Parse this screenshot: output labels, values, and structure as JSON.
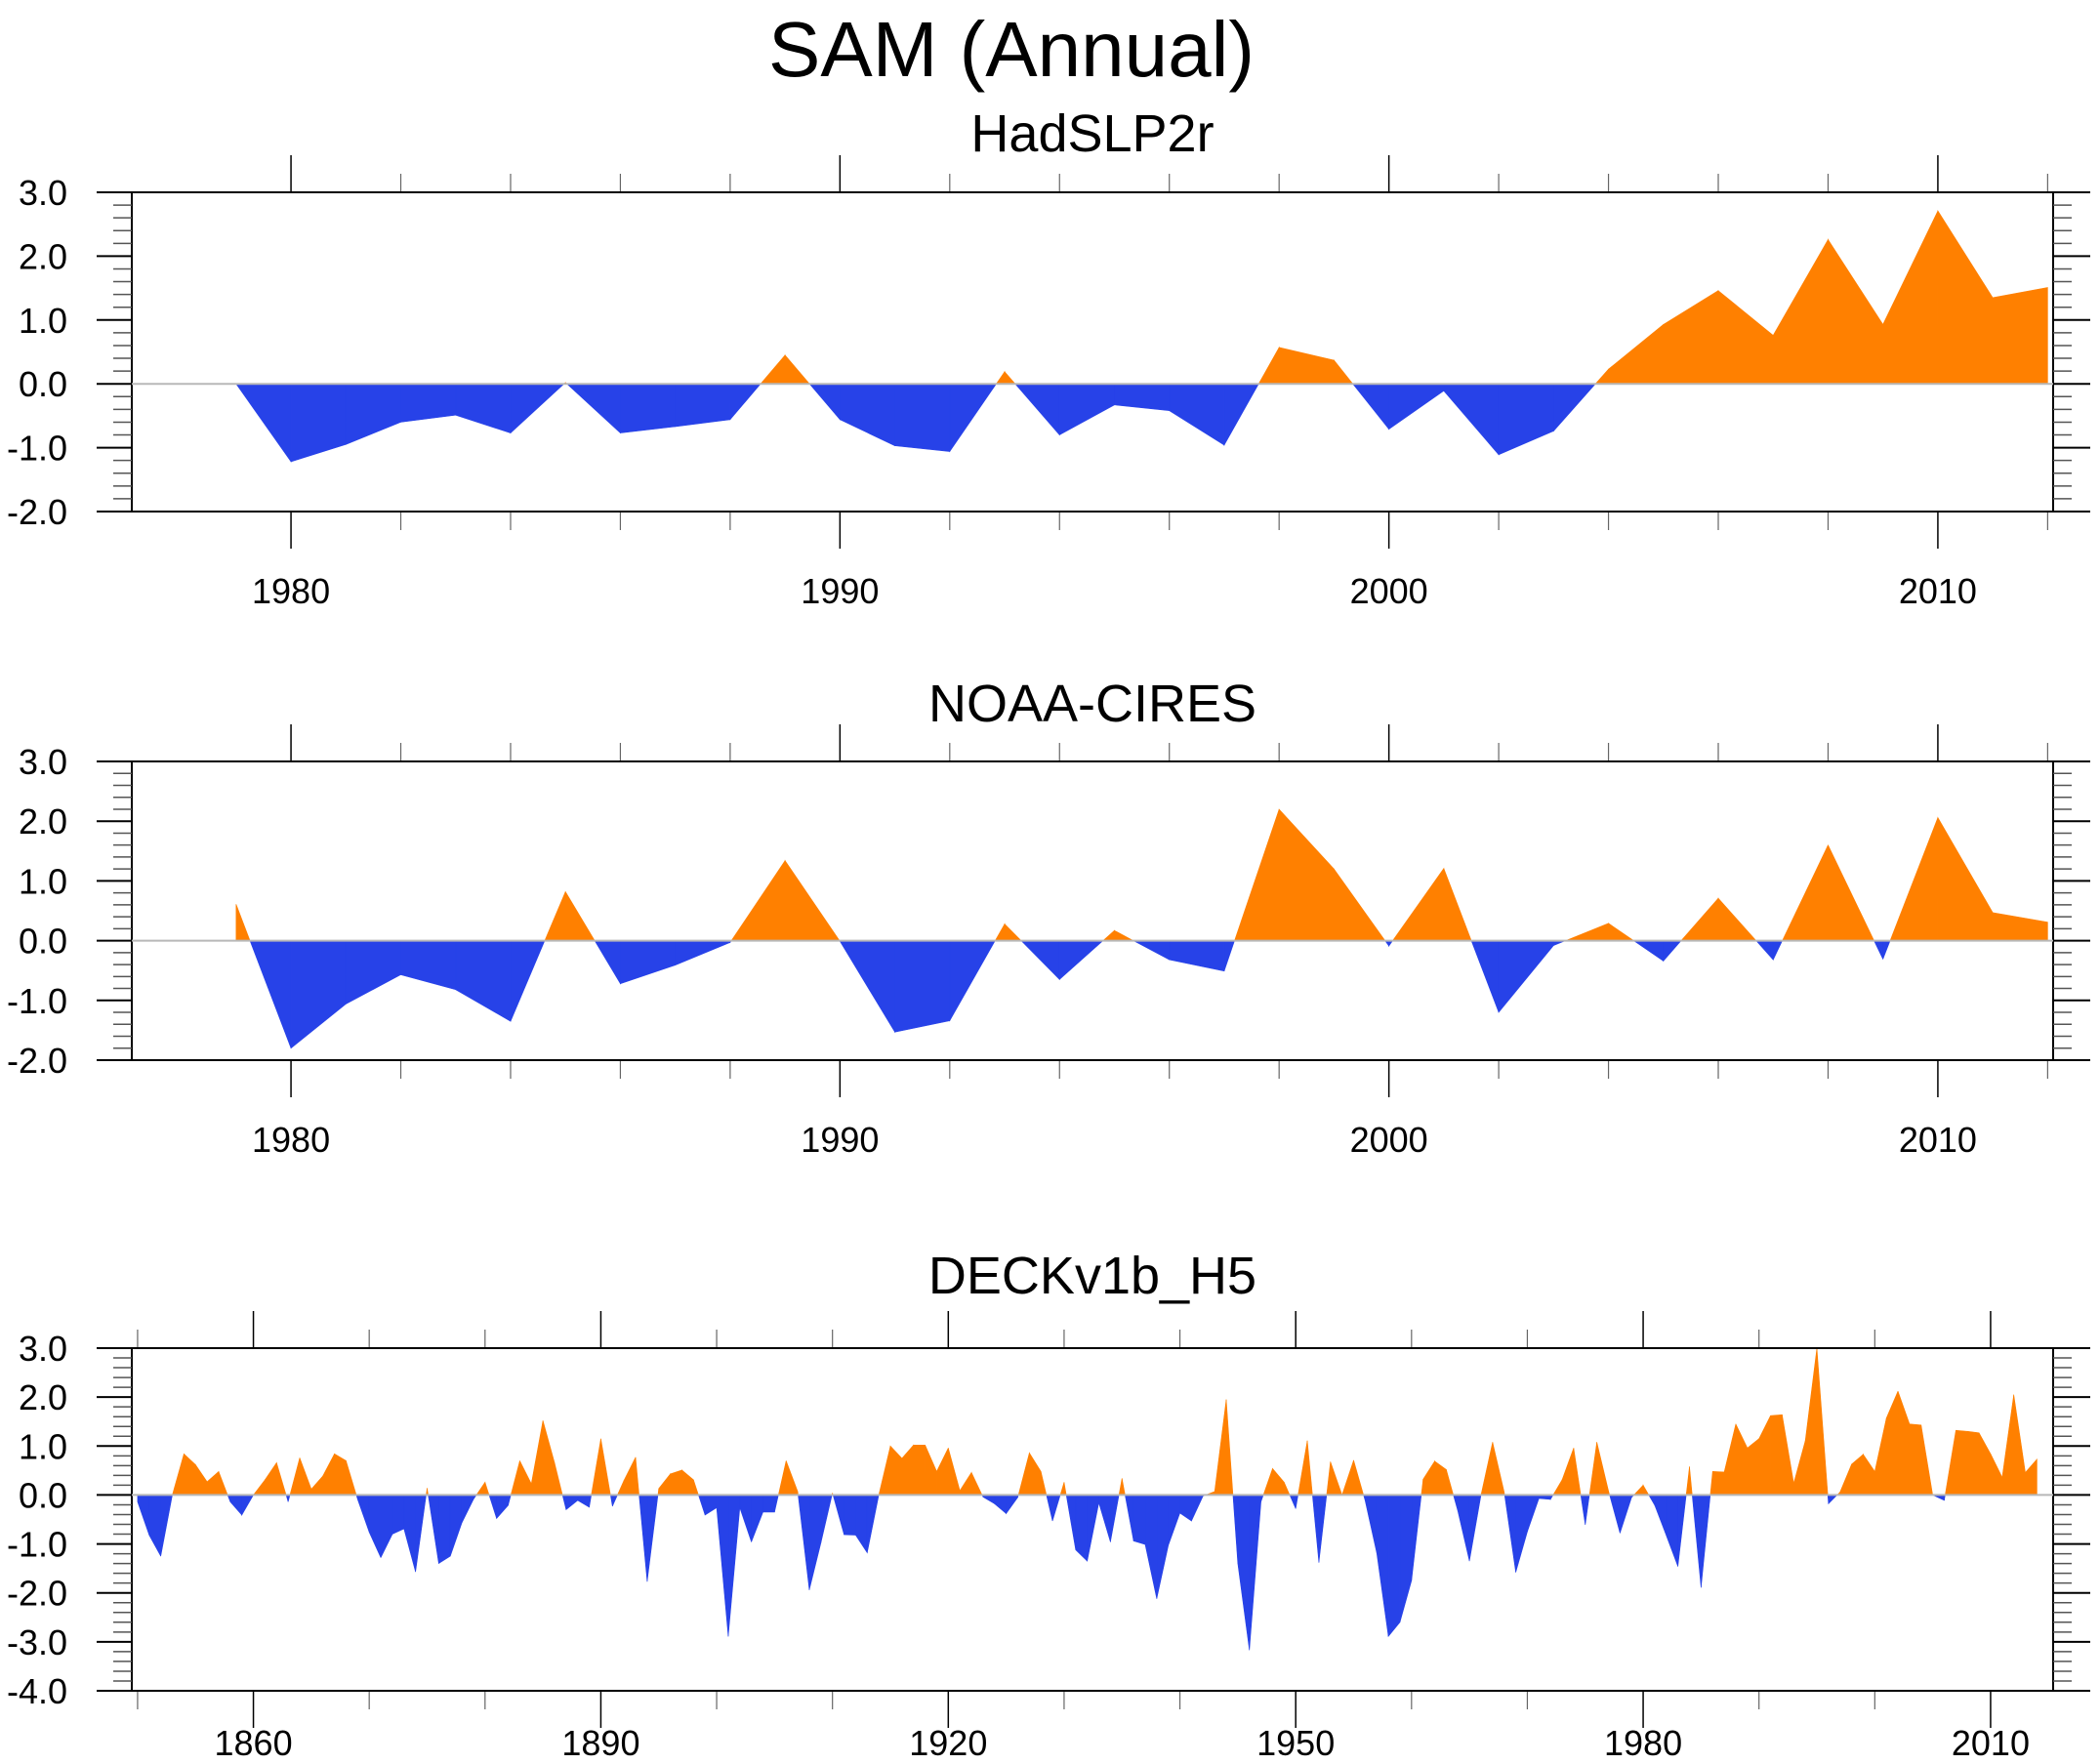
{
  "figure": {
    "title": "SAM (Annual)"
  },
  "colors": {
    "positive": "#ff8000",
    "negative": "#2742e8",
    "zero_line": "#b8b8b8",
    "axis": "#000000"
  },
  "chart_data": [
    {
      "type": "area",
      "title": "HadSLP2r",
      "xlabel": "",
      "ylabel": "",
      "xlim": [
        1977.1,
        2012.1
      ],
      "ylim": [
        -2.0,
        3.0
      ],
      "yticks": [
        3.0,
        2.0,
        1.0,
        0.0,
        -1.0,
        -2.0
      ],
      "ytick_labels": [
        "3.0",
        "2.0",
        "1.0",
        "0.0",
        "-1.0",
        "-2.0"
      ],
      "xticks_major": [
        1980,
        1990,
        2000,
        2010
      ],
      "xtick_labels": [
        "1980",
        "1990",
        "2000",
        "2010"
      ],
      "xticks_minor": [
        1982,
        1984,
        1986,
        1988,
        1992,
        1994,
        1996,
        1998,
        2002,
        2004,
        2006,
        2008,
        2012
      ],
      "fill_above_zero": "positive",
      "fill_below_zero": "negative",
      "x": [
        1979,
        1980,
        1981,
        1982,
        1983,
        1984,
        1985,
        1986,
        1987,
        1988,
        1989,
        1990,
        1991,
        1992,
        1993,
        1994,
        1995,
        1996,
        1997,
        1998,
        1999,
        2000,
        2001,
        2002,
        2003,
        2004,
        2005,
        2006,
        2007,
        2008,
        2009,
        2010,
        2011,
        2012
      ],
      "values": [
        0.0,
        -1.22,
        -0.95,
        -0.6,
        -0.49,
        -0.77,
        0.02,
        -0.77,
        -0.67,
        -0.56,
        0.45,
        -0.56,
        -0.97,
        -1.06,
        0.19,
        -0.8,
        -0.33,
        -0.42,
        -0.96,
        0.57,
        0.37,
        -0.71,
        -0.11,
        -1.11,
        -0.74,
        0.23,
        0.93,
        1.46,
        0.76,
        2.26,
        0.93,
        2.71,
        1.35,
        1.51
      ]
    },
    {
      "type": "area",
      "title": "NOAA-CIRES",
      "xlabel": "",
      "ylabel": "",
      "xlim": [
        1977.1,
        2012.1
      ],
      "ylim": [
        -2.0,
        3.0
      ],
      "yticks": [
        3.0,
        2.0,
        1.0,
        0.0,
        -1.0,
        -2.0
      ],
      "ytick_labels": [
        "3.0",
        "2.0",
        "1.0",
        "0.0",
        "-1.0",
        "-2.0"
      ],
      "xticks_major": [
        1980,
        1990,
        2000,
        2010
      ],
      "xtick_labels": [
        "1980",
        "1990",
        "2000",
        "2010"
      ],
      "xticks_minor": [
        1982,
        1984,
        1986,
        1988,
        1992,
        1994,
        1996,
        1998,
        2002,
        2004,
        2006,
        2008,
        2012
      ],
      "fill_above_zero": "positive",
      "fill_below_zero": "negative",
      "x": [
        1979,
        1980,
        1981,
        1982,
        1983,
        1984,
        1985,
        1986,
        1987,
        1988,
        1989,
        1990,
        1991,
        1992,
        1993,
        1994,
        1995,
        1996,
        1997,
        1998,
        1999,
        2000,
        2001,
        2002,
        2003,
        2004,
        2005,
        2006,
        2007,
        2008,
        2009,
        2010,
        2011,
        2012
      ],
      "values": [
        0.61,
        -1.8,
        -1.06,
        -0.57,
        -0.82,
        -1.35,
        0.82,
        -0.72,
        -0.41,
        -0.03,
        1.34,
        -0.01,
        -1.53,
        -1.34,
        0.28,
        -0.65,
        0.17,
        -0.32,
        -0.51,
        2.2,
        1.2,
        -0.09,
        1.21,
        -1.2,
        -0.08,
        0.29,
        -0.34,
        0.71,
        -0.32,
        1.6,
        -0.31,
        2.06,
        0.47,
        0.31
      ]
    },
    {
      "type": "area",
      "title": "DECKv1b_H5",
      "xlabel": "",
      "ylabel": "",
      "xlim": [
        1849.5,
        2015.4
      ],
      "ylim": [
        -4.0,
        3.0
      ],
      "yticks": [
        3.0,
        2.0,
        1.0,
        0.0,
        -1.0,
        -2.0,
        -3.0,
        -4.0
      ],
      "ytick_labels": [
        "3.0",
        "2.0",
        "1.0",
        "0.0",
        "-1.0",
        "-2.0",
        "-3.0",
        "-4.0"
      ],
      "xticks_major": [
        1860,
        1890,
        1920,
        1950,
        1980,
        2010
      ],
      "xtick_labels": [
        "1860",
        "1890",
        "1920",
        "1950",
        "1980",
        "2010"
      ],
      "xticks_minor": [
        1850,
        1870,
        1880,
        1900,
        1910,
        1930,
        1940,
        1960,
        1970,
        1990,
        2000
      ],
      "fill_above_zero": "positive",
      "fill_below_zero": "negative",
      "x_start": 1850,
      "x_step": 1,
      "values": [
        -0.14,
        -0.82,
        -1.25,
        0.0,
        0.84,
        0.62,
        0.27,
        0.48,
        -0.14,
        -0.41,
        0.0,
        0.31,
        0.66,
        -0.14,
        0.76,
        0.12,
        0.39,
        0.84,
        0.7,
        -0.09,
        -0.76,
        -1.28,
        -0.8,
        -0.69,
        -1.57,
        0.14,
        -1.4,
        -1.25,
        -0.57,
        -0.09,
        0.26,
        -0.48,
        -0.21,
        0.7,
        0.23,
        1.52,
        0.66,
        -0.3,
        -0.11,
        -0.25,
        1.15,
        -0.23,
        0.3,
        0.77,
        -1.77,
        0.13,
        0.43,
        0.51,
        0.31,
        -0.41,
        -0.26,
        -2.89,
        -0.26,
        -0.96,
        -0.35,
        -0.35,
        0.7,
        0.07,
        -1.94,
        -0.98,
        0.04,
        -0.81,
        -0.82,
        -1.18,
        0.0,
        1.0,
        0.75,
        1.02,
        1.02,
        0.48,
        0.96,
        0.09,
        0.46,
        -0.04,
        -0.18,
        -0.38,
        -0.05,
        0.86,
        0.48,
        -0.53,
        0.26,
        -1.12,
        -1.35,
        -0.16,
        -0.96,
        0.34,
        -0.94,
        -1.01,
        -2.12,
        -1.03,
        -0.37,
        -0.53,
        -0.02,
        0.07,
        1.95,
        -1.4,
        -3.17,
        -0.14,
        0.54,
        0.26,
        -0.28,
        1.11,
        -1.38,
        0.68,
        0.0,
        0.71,
        -0.12,
        -1.19,
        -2.89,
        -2.6,
        -1.75,
        0.32,
        0.69,
        0.52,
        -0.33,
        -1.35,
        0.0,
        1.08,
        0.06,
        -1.58,
        -0.75,
        -0.07,
        -0.09,
        0.31,
        0.96,
        -0.61,
        1.08,
        0.09,
        -0.78,
        -0.05,
        0.2,
        -0.21,
        -0.83,
        -1.46,
        0.58,
        -1.89,
        0.48,
        0.47,
        1.45,
        0.96,
        1.15,
        1.62,
        1.64,
        0.24,
        1.11,
        3.0,
        -0.18,
        0.06,
        0.63,
        0.83,
        0.48,
        1.57,
        2.12,
        1.45,
        1.43,
        0.0,
        -0.11,
        1.32,
        1.3,
        1.27,
        0.84,
        0.36,
        2.05,
        0.46,
        0.73
      ]
    }
  ]
}
